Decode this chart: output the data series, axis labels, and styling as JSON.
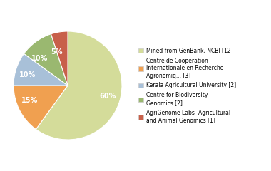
{
  "slices": [
    60,
    15,
    10,
    10,
    5
  ],
  "colors": [
    "#d4dc9a",
    "#f0a050",
    "#a8c0d8",
    "#9ab870",
    "#c8604a"
  ],
  "labels": [
    "60%",
    "15%",
    "10%",
    "10%",
    "5%"
  ],
  "legend_labels": [
    "Mined from GenBank, NCBI [12]",
    "Centre de Cooperation\nInternationale en Recherche\nAgronomiq... [3]",
    "Kerala Agricultural University [2]",
    "Centre for Biodiversity\nGenomics [2]",
    "AgriGenome Labs- Agricultural\nand Animal Genomics [1]"
  ],
  "startangle": 90,
  "text_color": "white",
  "fontsize_pct": 7.0,
  "background_color": "#ffffff",
  "legend_fontsize": 5.5
}
